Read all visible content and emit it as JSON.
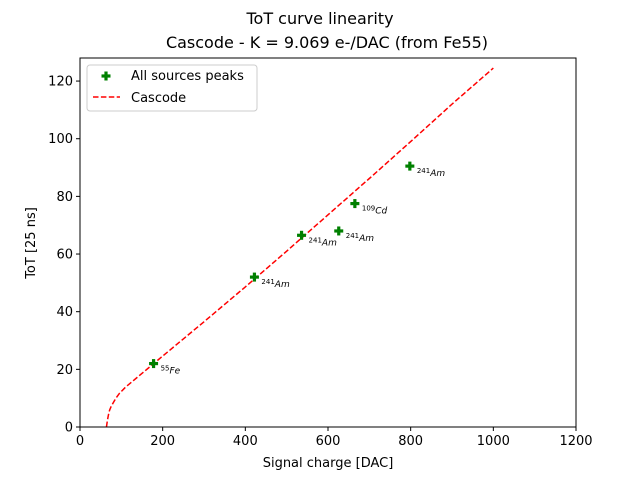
{
  "chart_data": {
    "type": "scatter",
    "title": "ToT curve linearity",
    "subtitle": "Cascode - K = 9.069 e-/DAC (from Fe55)",
    "xlabel": "Signal charge [DAC]",
    "ylabel": "ToT [25 ns]",
    "xlim": [
      0,
      1200
    ],
    "ylim": [
      0,
      128
    ],
    "xticks": [
      0,
      200,
      400,
      600,
      800,
      1000,
      1200
    ],
    "yticks": [
      0,
      20,
      40,
      60,
      80,
      100,
      120
    ],
    "grid": false,
    "legend_placement": "top-left",
    "colors": {
      "points": "#008000",
      "curve": "#ff0000"
    },
    "series": [
      {
        "name": "All sources peaks",
        "kind": "scatter",
        "marker": "plus",
        "points": [
          {
            "x": 178,
            "y": 22,
            "sup": "55",
            "iso": "Fe"
          },
          {
            "x": 422,
            "y": 52,
            "sup": "241",
            "iso": "Am"
          },
          {
            "x": 536,
            "y": 66.5,
            "sup": "241",
            "iso": "Am"
          },
          {
            "x": 626,
            "y": 68,
            "sup": "241",
            "iso": "Am"
          },
          {
            "x": 665,
            "y": 77.5,
            "sup": "109",
            "iso": "Cd"
          },
          {
            "x": 798,
            "y": 90.5,
            "sup": "241",
            "iso": "Am"
          }
        ]
      },
      {
        "name": "Cascode",
        "kind": "line",
        "style": "dashed",
        "x": [
          64,
          65,
          66,
          68,
          70,
          72,
          75,
          78,
          82,
          87,
          95,
          110,
          130,
          160,
          200,
          300,
          400,
          500,
          600,
          700,
          800,
          900,
          1000
        ],
        "y": [
          0,
          1,
          2,
          3.6,
          5,
          6,
          7,
          7.8,
          8.8,
          10,
          11.6,
          13.8,
          16.2,
          19.8,
          24.6,
          36.5,
          48.6,
          61,
          73.6,
          86.2,
          99,
          112,
          124.5
        ]
      }
    ]
  }
}
